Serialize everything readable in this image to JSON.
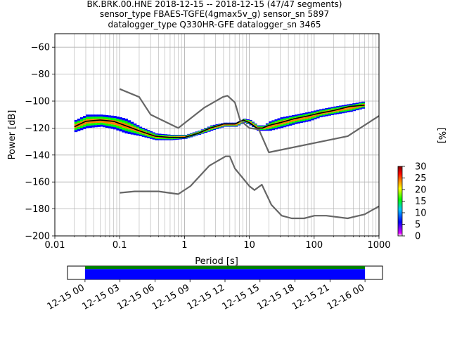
{
  "title": {
    "line1": "BK.BRK.00.HNE   2018-12-15 -- 2018-12-15  (47/47 segments)",
    "line2": "sensor_type FBAES-TGFE(4gmax5v_g) sensor_sn 5897",
    "line3": "datalogger_type Q330HR-GFE datalogger_sn 3465"
  },
  "chart_data": [
    {
      "type": "heatmap",
      "subtype": "probabilistic-power-spectral-density",
      "xlabel": "Period [s]",
      "ylabel": "Power [dB]",
      "xscale": "log",
      "xlim": [
        0.01,
        1000
      ],
      "ylim": [
        -200,
        -50
      ],
      "x_ticks": [
        0.01,
        0.1,
        1,
        10,
        100,
        1000
      ],
      "x_tick_labels": [
        "0.01",
        "0.1",
        "1",
        "10",
        "100",
        "1000"
      ],
      "y_ticks": [
        -200,
        -180,
        -160,
        -140,
        -120,
        -100,
        -80,
        -60
      ],
      "y_tick_labels": [
        "−200",
        "−180",
        "−160",
        "−140",
        "−120",
        "−100",
        "−80",
        "−60"
      ],
      "grid": true,
      "density_band": {
        "period": [
          0.02,
          0.03,
          0.05,
          0.08,
          0.12,
          0.2,
          0.35,
          0.6,
          1.0,
          1.6,
          2.5,
          4.0,
          6.0,
          8.0,
          10.0,
          13.0,
          16.0,
          20.0,
          30.0,
          50.0,
          80.0,
          120.0,
          200.0,
          350.0,
          600.0
        ],
        "upper_db": [
          -114,
          -110,
          -110,
          -111,
          -113,
          -119,
          -124,
          -125,
          -125,
          -122,
          -118,
          -116,
          -116,
          -113,
          -114,
          -118,
          -118,
          -115,
          -112,
          -110,
          -108,
          -106,
          -104,
          -102,
          -100
        ],
        "lower_db": [
          -123,
          -120,
          -119,
          -121,
          -124,
          -126,
          -129,
          -129,
          -128,
          -125,
          -122,
          -119,
          -119,
          -116,
          -118,
          -122,
          -122,
          -122,
          -120,
          -117,
          -115,
          -112,
          -110,
          -108,
          -105
        ]
      },
      "series": [
        {
          "name": "",
          "color": "#000000",
          "x": [
            0.02,
            0.03,
            0.05,
            0.08,
            0.12,
            0.2,
            0.35,
            0.6,
            1.0,
            1.6,
            2.5,
            4.0,
            6.0,
            8.0,
            10.0,
            13.0,
            16.0,
            20.0,
            30.0,
            50.0,
            80.0,
            120.0,
            200.0,
            350.0,
            600.0
          ],
          "y": [
            -119,
            -115,
            -114,
            -115,
            -118,
            -122,
            -126,
            -127,
            -127,
            -124,
            -120,
            -117,
            -117,
            -114,
            -116,
            -120,
            -120,
            -118,
            -116,
            -113,
            -111,
            -109,
            -107,
            -104,
            -103
          ]
        },
        {
          "name": "",
          "color": "#666666",
          "x": [
            0.1,
            0.2,
            0.3,
            0.8,
            2.0,
            3.9,
            4.6,
            6.0,
            7.2,
            10.0,
            14.0,
            20.0,
            330.0,
            1000.0
          ],
          "y": [
            -91,
            -97,
            -110,
            -120,
            -105,
            -97,
            -96,
            -101,
            -114,
            -120,
            -121,
            -138,
            -126,
            -111
          ]
        },
        {
          "name": "",
          "color": "#666666",
          "x": [
            0.1,
            0.17,
            0.4,
            0.8,
            1.24,
            2.4,
            4.3,
            5.0,
            6.0,
            10.0,
            12.0,
            15.6,
            21.9,
            31.6,
            45.0,
            70.0,
            101.0,
            154.0,
            328.0,
            600.0,
            1000.0
          ],
          "y": [
            -168,
            -167,
            -167,
            -169,
            -163,
            -148,
            -141,
            -141,
            -150,
            -163,
            -166,
            -162,
            -177,
            -185,
            -187,
            -187,
            -185,
            -185,
            -187,
            -184,
            -178
          ]
        }
      ]
    },
    {
      "type": "heatmap",
      "role": "colorbar",
      "ylabel": "[%]",
      "range": [
        0,
        30
      ],
      "ticks": [
        0,
        5,
        10,
        15,
        20,
        25,
        30
      ],
      "tick_labels": [
        "0",
        "5",
        "10",
        "15",
        "20",
        "25",
        "30"
      ],
      "colors": [
        "#ffffff",
        "#e000ff",
        "#0000ff",
        "#00c8ff",
        "#00ff00",
        "#ffff00",
        "#ff7f00",
        "#ff0000",
        "#800000"
      ]
    },
    {
      "type": "bar",
      "role": "data-coverage-timeline",
      "x_tick_labels": [
        "12-15 00",
        "12-15 03",
        "12-15 06",
        "12-15 09",
        "12-15 12",
        "12-15 15",
        "12-15 18",
        "12-15 21",
        "12-16 00"
      ],
      "xlim_hours": [
        -1.5,
        25.5
      ],
      "coverage": [
        {
          "start_hour": 0,
          "end_hour": 24,
          "color": "#008000"
        },
        {
          "start_hour": 0,
          "end_hour": 24,
          "color": "#0000ff"
        }
      ]
    }
  ]
}
